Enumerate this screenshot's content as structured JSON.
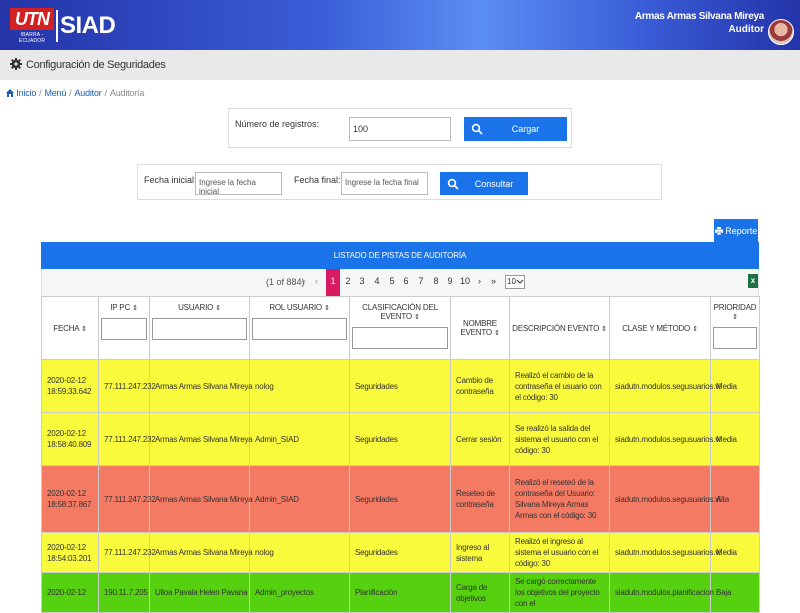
{
  "brand": {
    "logo_text": "UTN",
    "logo_sub": "IBARRA - ECUADOR",
    "app_name": "SIAD"
  },
  "user": {
    "name": "Armas Armas Silvana Mireya",
    "role": "Auditor"
  },
  "section": {
    "title": "Configuración de Seguridades"
  },
  "breadcrumb": {
    "items": [
      "Inicio",
      "Menú",
      "Auditor",
      "Auditoría"
    ]
  },
  "records": {
    "label": "Número de registros:",
    "value": "100",
    "button": "Cargar"
  },
  "filter": {
    "start_label": "Fecha inicial:",
    "start_placeholder": "Ingrese la fecha inicial",
    "end_label": "Fecha final:",
    "end_placeholder": "Ingrese la fecha final",
    "button": "Consultar"
  },
  "report_button": "Reporte",
  "panel_title": "LISTADO DE PISTAS DE AUDITORÍA",
  "pager": {
    "info": "(1 of 884)",
    "first": "«",
    "prev": "‹",
    "pages": [
      "1",
      "2",
      "3",
      "4",
      "5",
      "6",
      "7",
      "8",
      "9",
      "10"
    ],
    "current": "1",
    "next": "›",
    "last": "»",
    "rows_per_page": "10"
  },
  "columns": [
    {
      "label": "FECHA",
      "sort": "⇕"
    },
    {
      "label": "IP PC",
      "sort": "⇕"
    },
    {
      "label": "USUARIO",
      "sort": "⇕"
    },
    {
      "label": "ROL USUARIO",
      "sort": "⇕"
    },
    {
      "label": "CLASIFICACIÓN DEL EVENTO",
      "sort": "⇕"
    },
    {
      "label": "NOMBRE EVENTO",
      "sort": "⇕"
    },
    {
      "label": "DESCRIPCIÓN EVENTO",
      "sort": "⇕"
    },
    {
      "label": "CLASE Y MÉTODO",
      "sort": "⇕"
    },
    {
      "label": "PRIORIDAD",
      "sort": "⇕"
    }
  ],
  "rows": [
    {
      "fecha": "2020-02-12 18:59:33.642",
      "ip": "77.111.247.232",
      "usuario": "Armas Armas Silvana Mireya",
      "rol": "nolog",
      "clasificacion": "Seguridades",
      "evento": "Cambio de contraseña",
      "descripcion": "Realizó el cambio de la contraseña el usuario con el código: 30",
      "clase": "siadutn.modulos.segusuarios.vi",
      "prioridad": "Media"
    },
    {
      "fecha": "2020-02-12 18:58:40.809",
      "ip": "77.111.247.232",
      "usuario": "Armas Armas Silvana Mireya",
      "rol": "Admin_SIAD",
      "clasificacion": "Seguridades",
      "evento": "Cerrar sesión",
      "descripcion": "Se realizó la salida del sistema el usuario con el código: 30",
      "clase": "siadutn.modulos.segusuarios.vi",
      "prioridad": "Media"
    },
    {
      "fecha": "2020-02-12 18:58:37.867",
      "ip": "77.111.247.232",
      "usuario": "Armas Armas Silvana Mireya",
      "rol": "Admin_SIAD",
      "clasificacion": "Seguridades",
      "evento": "Reseteo de contraseña",
      "descripcion": "Realizó el reseteó de la contraseña del Usuario: Silvana Mireya Armas Armas con el código: 30",
      "clase": "siadutn.modulos.segusuarios.vi",
      "prioridad": "Alta"
    },
    {
      "fecha": "2020-02-12 18:54:03.201",
      "ip": "77.111.247.232",
      "usuario": "Armas Armas Silvana Mireya",
      "rol": "nolog",
      "clasificacion": "Seguridades",
      "evento": "Ingreso al sistema",
      "descripcion": "Realizó el ingreso al sistema el usuario con el código: 30",
      "clase": "siadutn.modulos.segusuarios.vi",
      "prioridad": "Media"
    },
    {
      "fecha": "2020-02-12",
      "ip": "190.11.7.205",
      "usuario": "Ulloa Pavala Helen Pavana",
      "rol": "Admin_proyectos",
      "clasificacion": "Planificación",
      "evento": "Carga de objetivos",
      "descripcion": "Se cargó correctamente los objetivos del proyecto con el",
      "clase": "siadutn.modulos.planificacion",
      "prioridad": "Baja"
    }
  ]
}
